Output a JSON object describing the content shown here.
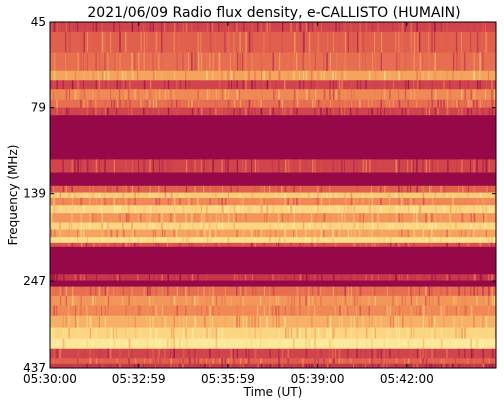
{
  "chart_data": {
    "type": "heatmap",
    "title": "2021/06/09  Radio flux density, e-CALLISTO (HUMAIN)",
    "xlabel": "Time (UT)",
    "ylabel": "Frequency (MHz)",
    "x_ticks": [
      "05:30:00",
      "05:32:59",
      "05:35:59",
      "05:39:00",
      "05:42:00"
    ],
    "x_tick_seconds": [
      0,
      179,
      359,
      540,
      720
    ],
    "x_range_seconds": [
      0,
      900
    ],
    "y_ticks": [
      "45",
      "79",
      "139",
      "247",
      "437"
    ],
    "y_tick_values": [
      45,
      79,
      139,
      247,
      437
    ],
    "y_axis_inverted": true,
    "y_scale": "log",
    "colormap": [
      "#8c0046",
      "#b4214f",
      "#d84d4a",
      "#ee7c52",
      "#f6a85f",
      "#fbd27d",
      "#fdf0a6"
    ],
    "frequency_bands": [
      {
        "f": [
          45,
          48
        ],
        "level": 0.3
      },
      {
        "f": [
          48,
          55
        ],
        "level": 0.4
      },
      {
        "f": [
          55,
          62
        ],
        "level": 0.45
      },
      {
        "f": [
          62,
          66
        ],
        "level": 0.65
      },
      {
        "f": [
          66,
          70
        ],
        "level": 0.3
      },
      {
        "f": [
          70,
          75
        ],
        "level": 0.55
      },
      {
        "f": [
          75,
          79
        ],
        "level": 0.45
      },
      {
        "f": [
          79,
          83
        ],
        "level": 0.3
      },
      {
        "f": [
          83,
          111
        ],
        "level": 0.04
      },
      {
        "f": [
          111,
          121
        ],
        "level": 0.3
      },
      {
        "f": [
          121,
          132
        ],
        "level": 0.04
      },
      {
        "f": [
          132,
          138
        ],
        "level": 0.4
      },
      {
        "f": [
          138,
          143
        ],
        "level": 0.8
      },
      {
        "f": [
          143,
          150
        ],
        "level": 0.55
      },
      {
        "f": [
          150,
          158
        ],
        "level": 0.85
      },
      {
        "f": [
          158,
          168
        ],
        "level": 0.6
      },
      {
        "f": [
          168,
          176
        ],
        "level": 0.85
      },
      {
        "f": [
          176,
          185
        ],
        "level": 0.65
      },
      {
        "f": [
          185,
          192
        ],
        "level": 0.9
      },
      {
        "f": [
          192,
          197
        ],
        "level": 0.35
      },
      {
        "f": [
          197,
          236
        ],
        "level": 0.04
      },
      {
        "f": [
          236,
          246
        ],
        "level": 0.25
      },
      {
        "f": [
          246,
          256
        ],
        "level": 0.04
      },
      {
        "f": [
          256,
          272
        ],
        "level": 0.45
      },
      {
        "f": [
          272,
          290
        ],
        "level": 0.6
      },
      {
        "f": [
          290,
          310
        ],
        "level": 0.55
      },
      {
        "f": [
          310,
          335
        ],
        "level": 0.7
      },
      {
        "f": [
          335,
          360
        ],
        "level": 0.85
      },
      {
        "f": [
          360,
          385
        ],
        "level": 0.95
      },
      {
        "f": [
          385,
          410
        ],
        "level": 0.3
      },
      {
        "f": [
          410,
          425
        ],
        "level": 0.4
      },
      {
        "f": [
          425,
          437
        ],
        "level": 0.25
      }
    ]
  }
}
